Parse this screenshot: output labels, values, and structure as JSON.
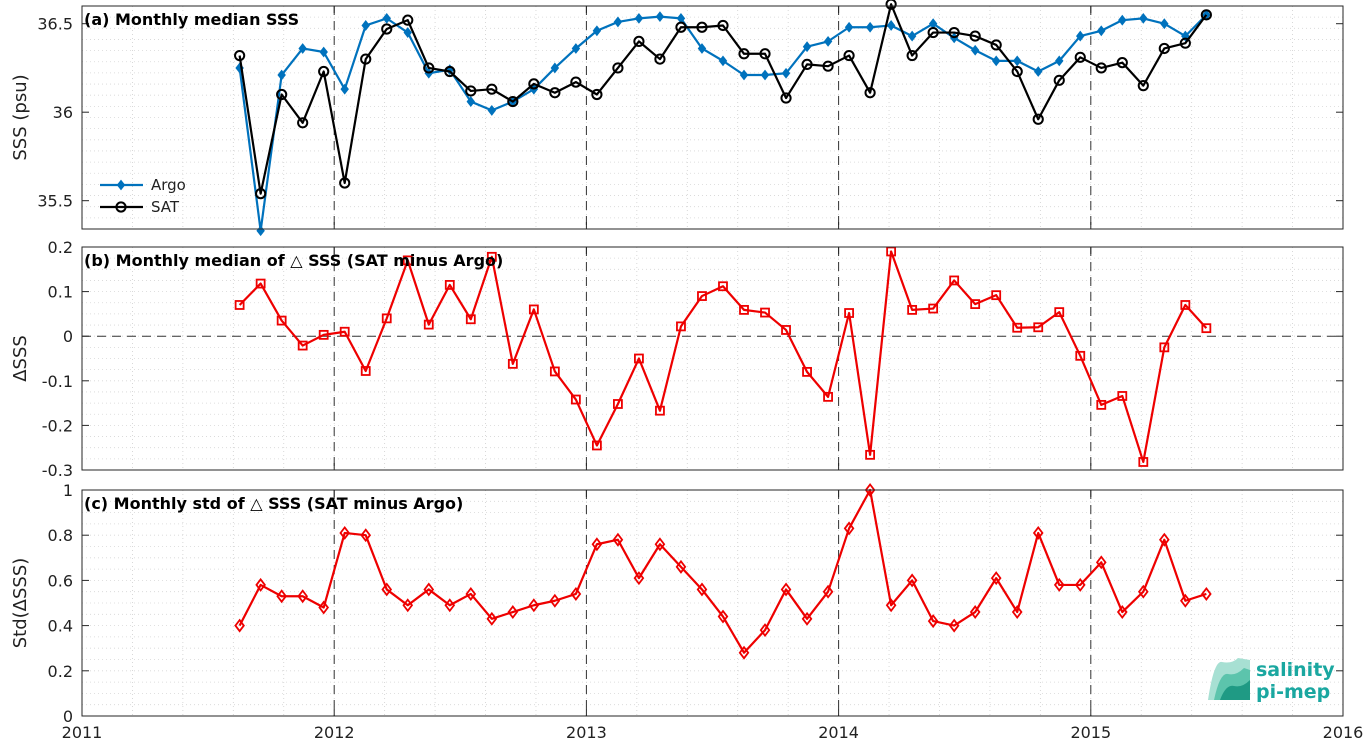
{
  "chart_data": [
    {
      "type": "line",
      "title": "(a) Monthly median SSS",
      "ylabel": "SSS (psu)",
      "xlim": [
        2011,
        2016
      ],
      "ylim": [
        35.34,
        36.6
      ],
      "yticks": [
        35.5,
        36,
        36.5
      ],
      "ytick_labels": [
        "35.5",
        "36",
        "36.5"
      ],
      "grid": true,
      "legend": "bottom-left",
      "x_start": 2011.625,
      "x_step": 0.08333,
      "series": [
        {
          "name": "Argo",
          "color": "#0072bd",
          "marker": "diamond-filled",
          "values": [
            36.25,
            35.33,
            36.21,
            36.36,
            36.34,
            36.13,
            36.49,
            36.53,
            36.45,
            36.22,
            36.24,
            36.06,
            36.01,
            36.06,
            36.13,
            36.25,
            36.36,
            36.46,
            36.51,
            36.53,
            36.54,
            36.53,
            36.36,
            36.29,
            36.21,
            36.21,
            36.22,
            36.37,
            36.4,
            36.48,
            36.48,
            36.49,
            36.43,
            36.5,
            36.42,
            36.35,
            36.29,
            36.29,
            36.23,
            36.29,
            36.43,
            36.46,
            36.52,
            36.53,
            36.5,
            36.43,
            36.55
          ]
        },
        {
          "name": "SAT",
          "color": "#000000",
          "marker": "circle-open",
          "values": [
            36.32,
            35.54,
            36.1,
            35.94,
            36.23,
            35.6,
            36.3,
            36.47,
            36.52,
            36.25,
            36.23,
            36.12,
            36.13,
            36.06,
            36.16,
            36.11,
            36.17,
            36.1,
            36.25,
            36.4,
            36.3,
            36.48,
            36.48,
            36.49,
            36.33,
            36.33,
            36.08,
            36.27,
            36.26,
            36.32,
            36.11,
            36.61,
            36.32,
            36.45,
            36.45,
            36.43,
            36.38,
            36.23,
            35.96,
            36.18,
            36.31,
            36.25,
            36.28,
            36.15,
            36.36,
            36.39,
            36.55
          ]
        }
      ]
    },
    {
      "type": "line",
      "title": "(b) Monthly median of △ SSS (SAT minus Argo)",
      "ylabel": "ΔSSS",
      "xlim": [
        2011,
        2016
      ],
      "ylim": [
        -0.3,
        0.2
      ],
      "yticks": [
        -0.3,
        -0.2,
        -0.1,
        0,
        0.1,
        0.2
      ],
      "ytick_labels": [
        "-0.3",
        "-0.2",
        "-0.1",
        "0",
        "0.1",
        "0.2"
      ],
      "grid": true,
      "reference_line": 0,
      "x_start": 2011.625,
      "x_step": 0.08333,
      "series": [
        {
          "color": "#ee0000",
          "marker": "square-open",
          "values": [
            0.07,
            0.118,
            0.035,
            -0.021,
            0.003,
            0.01,
            -0.078,
            0.04,
            0.17,
            0.026,
            0.115,
            0.038,
            0.178,
            -0.062,
            0.06,
            -0.079,
            -0.142,
            -0.245,
            -0.152,
            -0.05,
            -0.167,
            0.022,
            0.09,
            0.112,
            0.059,
            0.053,
            0.014,
            -0.08,
            -0.136,
            0.052,
            -0.266,
            0.19,
            0.059,
            0.062,
            0.125,
            0.072,
            0.092,
            0.019,
            0.02,
            0.054,
            -0.044,
            -0.154,
            -0.134,
            -0.282,
            -0.025,
            0.07,
            0.018
          ]
        }
      ]
    },
    {
      "type": "line",
      "title": "(c) Monthly std of △ SSS (SAT minus Argo)",
      "ylabel": "Std(ΔSSS)",
      "xlabel": "",
      "xlim": [
        2011,
        2016
      ],
      "ylim": [
        0,
        1
      ],
      "xticks": [
        2011,
        2012,
        2013,
        2014,
        2015,
        2016
      ],
      "xtick_labels": [
        "2011",
        "2012",
        "2013",
        "2014",
        "2015",
        "2016"
      ],
      "yticks": [
        0,
        0.2,
        0.4,
        0.6,
        0.8,
        1
      ],
      "ytick_labels": [
        "0",
        "0.2",
        "0.4",
        "0.6",
        "0.8",
        "1"
      ],
      "grid": true,
      "x_start": 2011.625,
      "x_step": 0.08333,
      "series": [
        {
          "color": "#ee0000",
          "marker": "diamond-open",
          "values": [
            0.4,
            0.58,
            0.53,
            0.53,
            0.48,
            0.81,
            0.8,
            0.56,
            0.49,
            0.56,
            0.49,
            0.54,
            0.43,
            0.46,
            0.49,
            0.51,
            0.54,
            0.76,
            0.78,
            0.61,
            0.76,
            0.66,
            0.56,
            0.44,
            0.28,
            0.38,
            0.56,
            0.43,
            0.55,
            0.83,
            1.0,
            0.49,
            0.6,
            0.42,
            0.4,
            0.46,
            0.61,
            0.46,
            0.81,
            0.58,
            0.58,
            0.68,
            0.46,
            0.55,
            0.78,
            0.51,
            0.54
          ]
        }
      ]
    }
  ],
  "logo": {
    "line1": "salinity",
    "line2": "pi-mep"
  }
}
